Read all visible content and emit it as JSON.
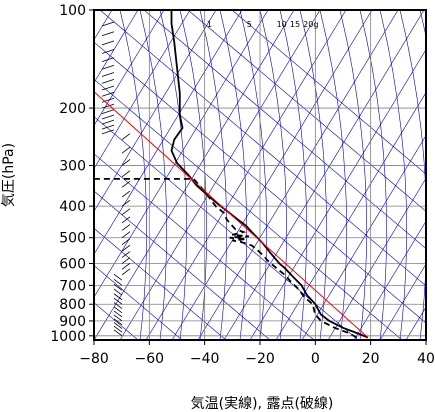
{
  "chart_data": {
    "type": "line",
    "title": "",
    "xlabel": "気温(実線), 露点(破線)",
    "ylabel": "気圧(hPa)",
    "xlim": [
      -80,
      40
    ],
    "ylim": [
      1030,
      100
    ],
    "yscale": "log",
    "x_ticks": [
      -80,
      -60,
      -40,
      -20,
      0,
      20,
      40
    ],
    "y_ticks": [
      100,
      200,
      300,
      400,
      500,
      600,
      700,
      800,
      900,
      1000
    ],
    "mixing_ratio_labels": [
      "1",
      "5",
      "10",
      "15",
      "20g"
    ],
    "colors": {
      "temperature": "#000000",
      "dewpoint": "#000000",
      "parcel": "#ff0000",
      "background_lines": "#0000cc",
      "grid": "#808080"
    },
    "series": [
      {
        "role": "temperature",
        "style": "solid",
        "points": [
          [
            19,
            1012
          ],
          [
            15,
            980
          ],
          [
            10,
            945
          ],
          [
            5,
            900
          ],
          [
            2,
            860
          ],
          [
            0,
            800
          ],
          [
            -3,
            750
          ],
          [
            -5,
            700
          ],
          [
            -8,
            660
          ],
          [
            -11,
            620
          ],
          [
            -13,
            600
          ],
          [
            -16,
            560
          ],
          [
            -19,
            520
          ],
          [
            -22,
            490
          ],
          [
            -25,
            460
          ],
          [
            -28,
            440
          ],
          [
            -31,
            420
          ],
          [
            -35,
            395
          ],
          [
            -39,
            370
          ],
          [
            -43,
            345
          ],
          [
            -46,
            320
          ],
          [
            -50,
            295
          ],
          [
            -52,
            270
          ],
          [
            -51,
            250
          ],
          [
            -48,
            230
          ],
          [
            -49,
            210
          ],
          [
            -49,
            180
          ],
          [
            -50,
            150
          ],
          [
            -51,
            125
          ],
          [
            -52,
            110
          ],
          [
            -52,
            100
          ]
        ]
      },
      {
        "role": "dewpoint",
        "style": "dashed",
        "points": [
          [
            15,
            1012
          ],
          [
            12,
            980
          ],
          [
            7,
            945
          ],
          [
            2,
            900
          ],
          [
            0,
            860
          ],
          [
            -1,
            800
          ],
          [
            -4,
            760
          ],
          [
            -6,
            720
          ],
          [
            -9,
            680
          ],
          [
            -11,
            650
          ],
          [
            -14,
            620
          ],
          [
            -17,
            590
          ],
          [
            -19,
            565
          ],
          [
            -21,
            545
          ],
          [
            -23,
            528
          ],
          [
            -27,
            515
          ],
          [
            -30,
            510
          ],
          [
            -25,
            505
          ],
          [
            -31,
            500
          ],
          [
            -24,
            495
          ],
          [
            -30,
            490
          ],
          [
            -26,
            480
          ],
          [
            -29,
            470
          ],
          [
            -32,
            440
          ],
          [
            -33,
            420
          ],
          [
            -36,
            400
          ],
          [
            -38,
            380
          ],
          [
            -40,
            360
          ],
          [
            -42,
            345
          ],
          [
            -44,
            330
          ],
          [
            -80,
            330
          ]
        ]
      },
      {
        "role": "parcel",
        "style": "solid",
        "points": [
          [
            19,
            1012
          ],
          [
            -81,
            175
          ]
        ]
      }
    ],
    "wind_barbs": "left-hand column of wind barbs, pressure 1000-250 hPa"
  }
}
